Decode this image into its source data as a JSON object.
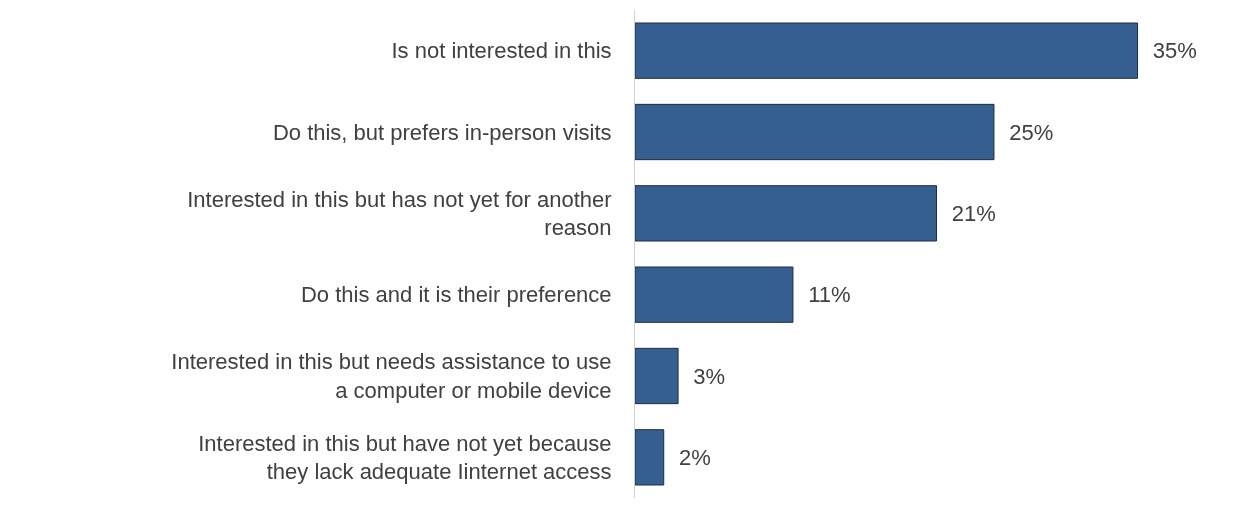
{
  "chart_data": {
    "type": "bar",
    "orientation": "horizontal",
    "categories": [
      "Is not interested in this",
      "Do this, but prefers in-person visits",
      "Interested in this but has not yet for another reason",
      "Do this and it is their preference",
      "Interested in this but needs assistance to use a computer or mobile device",
      "Interested in this but have not yet because they lack adequate Iinternet access"
    ],
    "values": [
      35,
      25,
      21,
      11,
      3,
      2
    ],
    "value_labels": [
      "35%",
      "25%",
      "21%",
      "11%",
      "3%",
      "2%"
    ],
    "color": "#365f91"
  }
}
